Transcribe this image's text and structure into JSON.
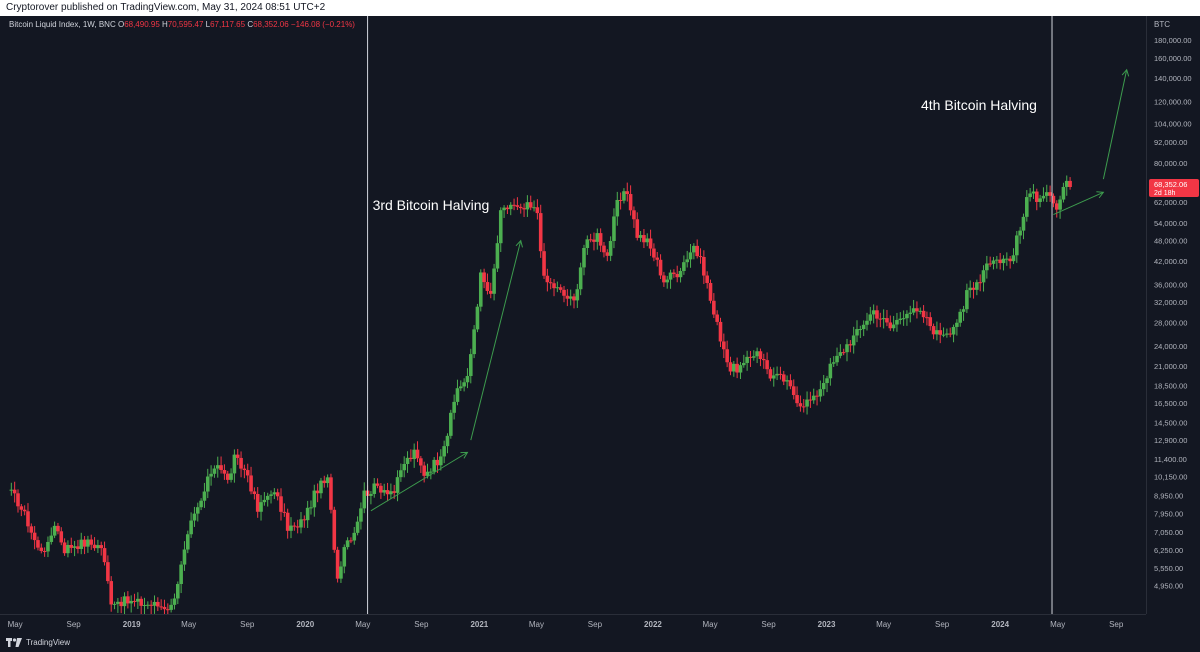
{
  "header": {
    "published_text": "Cryptorover published on TradingView.com, May 31, 2024 08:51 UTC+2"
  },
  "legend": {
    "symbol": "Bitcoin Liquid Index, 1W, BNC",
    "o_label": "O",
    "o_value": "68,490.95",
    "h_label": "H",
    "h_value": "70,595.47",
    "l_label": "L",
    "l_value": "67,117.65",
    "c_label": "C",
    "c_value": "68,352.06",
    "change": "−146.08 (−0.21%)"
  },
  "price_axis": {
    "currency": "BTC",
    "current_price": "68,352.06",
    "countdown": "2d 18h"
  },
  "footer": {
    "brand": "TradingView"
  },
  "colors": {
    "background": "#131722",
    "up": "#4caf50",
    "down": "#f23645",
    "annotation_arrow": "#3d9c4e",
    "halving_line": "#d1d4dc",
    "price_tag": "#f23645"
  },
  "chart_data": {
    "type": "candlestick",
    "title": "Bitcoin Liquid Index, 1W, BNC",
    "y_scale": "log",
    "ylim": [
      4500,
      200000
    ],
    "y_ticks": [
      {
        "v": 180000,
        "l": "180,000.00"
      },
      {
        "v": 160000,
        "l": "160,000.00"
      },
      {
        "v": 140000,
        "l": "140,000.00"
      },
      {
        "v": 120000,
        "l": "120,000.00"
      },
      {
        "v": 104000,
        "l": "104,000.00"
      },
      {
        "v": 92000,
        "l": "92,000.00"
      },
      {
        "v": 80000,
        "l": "80,000.00"
      },
      {
        "v": 62000,
        "l": "62,000.00"
      },
      {
        "v": 54000,
        "l": "54,000.00"
      },
      {
        "v": 48000,
        "l": "48,000.00"
      },
      {
        "v": 42000,
        "l": "42,000.00"
      },
      {
        "v": 36000,
        "l": "36,000.00"
      },
      {
        "v": 32000,
        "l": "32,000.00"
      },
      {
        "v": 28000,
        "l": "28,000.00"
      },
      {
        "v": 24000,
        "l": "24,000.00"
      },
      {
        "v": 21000,
        "l": "21,000.00"
      },
      {
        "v": 18500,
        "l": "18,500.00"
      },
      {
        "v": 16500,
        "l": "16,500.00"
      },
      {
        "v": 14500,
        "l": "14,500.00"
      },
      {
        "v": 12900,
        "l": "12,900.00"
      },
      {
        "v": 11400,
        "l": "11,400.00"
      },
      {
        "v": 10150,
        "l": "10,150.00"
      },
      {
        "v": 8950,
        "l": "8,950.00"
      },
      {
        "v": 7950,
        "l": "7,950.00"
      },
      {
        "v": 7050,
        "l": "7,050.00"
      },
      {
        "v": 6250,
        "l": "6,250.00"
      },
      {
        "v": 5550,
        "l": "5,550.00"
      },
      {
        "v": 4950,
        "l": "4,950.00"
      }
    ],
    "xlim": [
      "2018-04-16",
      "2024-10-21"
    ],
    "x_ticks": [
      {
        "d": "2018-05-01",
        "l": "May"
      },
      {
        "d": "2018-09-01",
        "l": "Sep"
      },
      {
        "d": "2019-01-01",
        "l": "2019",
        "bold": true
      },
      {
        "d": "2019-05-01",
        "l": "May"
      },
      {
        "d": "2019-09-01",
        "l": "Sep"
      },
      {
        "d": "2020-01-01",
        "l": "2020",
        "bold": true
      },
      {
        "d": "2020-05-01",
        "l": "May"
      },
      {
        "d": "2020-09-01",
        "l": "Sep"
      },
      {
        "d": "2021-01-01",
        "l": "2021",
        "bold": true
      },
      {
        "d": "2021-05-01",
        "l": "May"
      },
      {
        "d": "2021-09-01",
        "l": "Sep"
      },
      {
        "d": "2022-01-01",
        "l": "2022",
        "bold": true
      },
      {
        "d": "2022-05-01",
        "l": "May"
      },
      {
        "d": "2022-09-01",
        "l": "Sep"
      },
      {
        "d": "2023-01-01",
        "l": "2023",
        "bold": true
      },
      {
        "d": "2023-05-01",
        "l": "May"
      },
      {
        "d": "2023-09-01",
        "l": "Sep"
      },
      {
        "d": "2024-01-01",
        "l": "2024",
        "bold": true
      },
      {
        "d": "2024-05-01",
        "l": "May"
      },
      {
        "d": "2024-09-01",
        "l": "Sep"
      }
    ],
    "weekly_closes": [
      {
        "d": "2018-04-16",
        "c": 9300
      },
      {
        "d": "2018-05-07",
        "c": 8600
      },
      {
        "d": "2018-05-28",
        "c": 7500
      },
      {
        "d": "2018-06-18",
        "c": 6300
      },
      {
        "d": "2018-07-09",
        "c": 6400
      },
      {
        "d": "2018-07-23",
        "c": 7500
      },
      {
        "d": "2018-08-13",
        "c": 6300
      },
      {
        "d": "2018-09-03",
        "c": 6500
      },
      {
        "d": "2018-10-01",
        "c": 6550
      },
      {
        "d": "2018-10-29",
        "c": 6400
      },
      {
        "d": "2018-11-19",
        "c": 4500
      },
      {
        "d": "2019-03-25",
        "c": 4300
      },
      {
        "d": "2019-04-08",
        "c": 5100
      },
      {
        "d": "2019-05-06",
        "c": 7400
      },
      {
        "d": "2019-05-27",
        "c": 8600
      },
      {
        "d": "2019-06-17",
        "c": 10500
      },
      {
        "d": "2019-07-01",
        "c": 11200
      },
      {
        "d": "2019-07-22",
        "c": 9800
      },
      {
        "d": "2019-08-05",
        "c": 11400
      },
      {
        "d": "2019-09-02",
        "c": 10300
      },
      {
        "d": "2019-09-23",
        "c": 8100
      },
      {
        "d": "2019-10-21",
        "c": 9300
      },
      {
        "d": "2019-11-04",
        "c": 8700
      },
      {
        "d": "2019-11-25",
        "c": 7300
      },
      {
        "d": "2019-12-16",
        "c": 7200
      },
      {
        "d": "2020-01-06",
        "c": 8100
      },
      {
        "d": "2020-01-27",
        "c": 9400
      },
      {
        "d": "2020-02-17",
        "c": 9900
      },
      {
        "d": "2020-03-09",
        "c": 5200
      },
      {
        "d": "2020-03-23",
        "c": 6500
      },
      {
        "d": "2020-04-13",
        "c": 7100
      },
      {
        "d": "2020-05-04",
        "c": 9100
      },
      {
        "d": "2020-06-01",
        "c": 9500
      },
      {
        "d": "2020-07-06",
        "c": 9200
      },
      {
        "d": "2020-07-27",
        "c": 11100
      },
      {
        "d": "2020-08-17",
        "c": 11800
      },
      {
        "d": "2020-09-07",
        "c": 10400
      },
      {
        "d": "2020-10-05",
        "c": 11300
      },
      {
        "d": "2020-10-26",
        "c": 13500
      },
      {
        "d": "2020-11-16",
        "c": 18300
      },
      {
        "d": "2020-12-07",
        "c": 19200
      },
      {
        "d": "2020-12-21",
        "c": 27000
      },
      {
        "d": "2021-01-04",
        "c": 38000
      },
      {
        "d": "2021-01-25",
        "c": 33000
      },
      {
        "d": "2021-02-15",
        "c": 57000
      },
      {
        "d": "2021-03-08",
        "c": 61000
      },
      {
        "d": "2021-03-29",
        "c": 58000
      },
      {
        "d": "2021-04-12",
        "c": 60000
      },
      {
        "d": "2021-05-03",
        "c": 58000
      },
      {
        "d": "2021-05-17",
        "c": 37000
      },
      {
        "d": "2021-06-07",
        "c": 35500
      },
      {
        "d": "2021-06-28",
        "c": 33500
      },
      {
        "d": "2021-07-19",
        "c": 32000
      },
      {
        "d": "2021-08-09",
        "c": 46000
      },
      {
        "d": "2021-09-06",
        "c": 50000
      },
      {
        "d": "2021-09-27",
        "c": 43500
      },
      {
        "d": "2021-10-18",
        "c": 61000
      },
      {
        "d": "2021-11-08",
        "c": 66000
      },
      {
        "d": "2021-11-29",
        "c": 50000
      },
      {
        "d": "2021-12-20",
        "c": 47500
      },
      {
        "d": "2022-01-10",
        "c": 41500
      },
      {
        "d": "2022-01-24",
        "c": 37000
      },
      {
        "d": "2022-02-21",
        "c": 39000
      },
      {
        "d": "2022-03-28",
        "c": 46500
      },
      {
        "d": "2022-04-18",
        "c": 39500
      },
      {
        "d": "2022-05-09",
        "c": 29500
      },
      {
        "d": "2022-06-13",
        "c": 20500
      },
      {
        "d": "2022-07-11",
        "c": 21000
      },
      {
        "d": "2022-08-08",
        "c": 23500
      },
      {
        "d": "2022-09-05",
        "c": 19800
      },
      {
        "d": "2022-10-03",
        "c": 19200
      },
      {
        "d": "2022-11-07",
        "c": 16500
      },
      {
        "d": "2022-12-05",
        "c": 16800
      },
      {
        "d": "2023-01-09",
        "c": 20800
      },
      {
        "d": "2023-02-13",
        "c": 24200
      },
      {
        "d": "2023-03-13",
        "c": 26700
      },
      {
        "d": "2023-03-20",
        "c": 28000
      },
      {
        "d": "2023-04-10",
        "c": 30300
      },
      {
        "d": "2023-05-15",
        "c": 27000
      },
      {
        "d": "2023-06-19",
        "c": 30500
      },
      {
        "d": "2023-07-24",
        "c": 29200
      },
      {
        "d": "2023-08-21",
        "c": 26000
      },
      {
        "d": "2023-09-18",
        "c": 26800
      },
      {
        "d": "2023-10-16",
        "c": 30000
      },
      {
        "d": "2023-10-23",
        "c": 34500
      },
      {
        "d": "2023-11-20",
        "c": 37500
      },
      {
        "d": "2023-12-04",
        "c": 42000
      },
      {
        "d": "2024-01-08",
        "c": 42500
      },
      {
        "d": "2024-01-22",
        "c": 42100
      },
      {
        "d": "2024-02-12",
        "c": 51500
      },
      {
        "d": "2024-02-26",
        "c": 62000
      },
      {
        "d": "2024-03-11",
        "c": 68500
      },
      {
        "d": "2024-03-18",
        "c": 64000
      },
      {
        "d": "2024-04-08",
        "c": 65500
      },
      {
        "d": "2024-04-22",
        "c": 60000
      },
      {
        "d": "2024-05-06",
        "c": 61000
      },
      {
        "d": "2024-05-13",
        "c": 67000
      },
      {
        "d": "2024-05-20",
        "c": 69000
      },
      {
        "d": "2024-05-27",
        "c": 68352
      }
    ],
    "halvings": [
      {
        "d": "2020-05-11",
        "label": "3rd Bitcoin Halving"
      },
      {
        "d": "2024-04-19",
        "label": "4th Bitcoin Halving"
      }
    ],
    "arrows": [
      {
        "from": {
          "d": "2020-05-18",
          "v": 8100
        },
        "to": {
          "d": "2020-12-07",
          "v": 11900
        }
      },
      {
        "from": {
          "d": "2020-12-14",
          "v": 12900
        },
        "to": {
          "d": "2021-03-29",
          "v": 48000
        }
      },
      {
        "from": {
          "d": "2024-04-22",
          "v": 57000
        },
        "to": {
          "d": "2024-08-05",
          "v": 66000
        }
      },
      {
        "from": {
          "d": "2024-08-05",
          "v": 72000
        },
        "to": {
          "d": "2024-09-23",
          "v": 148000
        }
      }
    ]
  }
}
